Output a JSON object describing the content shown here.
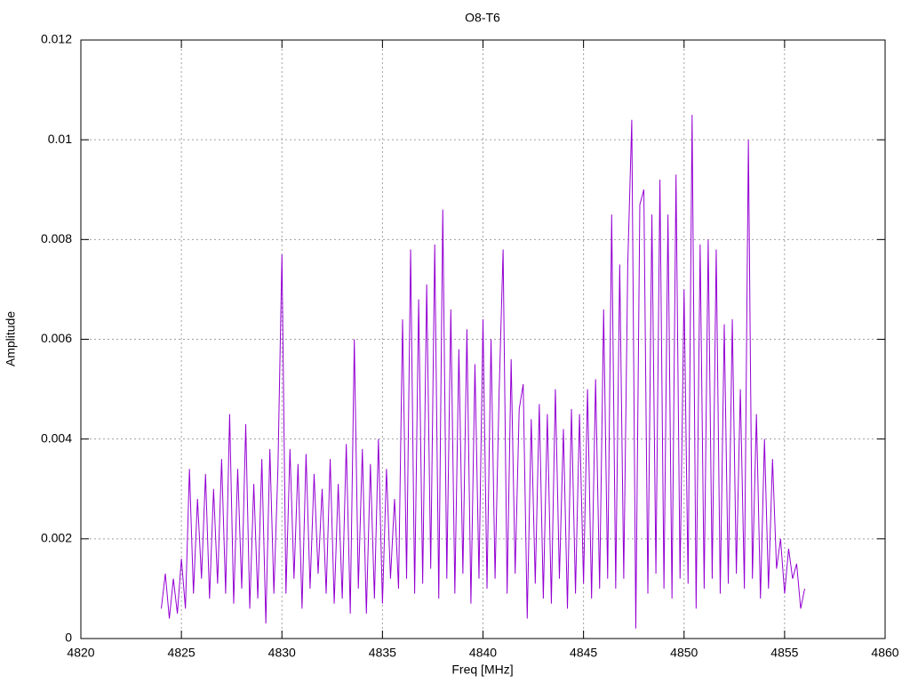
{
  "chart_data": {
    "type": "line",
    "title": "O8-T6",
    "xlabel": "Freq [MHz]",
    "ylabel": "Amplitude",
    "xlim": [
      4820,
      4860
    ],
    "xticks": [
      4820,
      4825,
      4830,
      4835,
      4840,
      4845,
      4850,
      4855,
      4860
    ],
    "ylim": [
      0,
      0.012
    ],
    "yticks": [
      0,
      0.002,
      0.004,
      0.006,
      0.008,
      0.01,
      0.012
    ],
    "grid": true,
    "series": [
      {
        "color": "#9400d3",
        "x": [
          4824.0,
          4824.2,
          4824.4,
          4824.6,
          4824.8,
          4825.0,
          4825.2,
          4825.4,
          4825.6,
          4825.8,
          4826.0,
          4826.2,
          4826.4,
          4826.6,
          4826.8,
          4827.0,
          4827.2,
          4827.4,
          4827.6,
          4827.8,
          4828.0,
          4828.2,
          4828.4,
          4828.6,
          4828.8,
          4829.0,
          4829.2,
          4829.4,
          4829.6,
          4829.8,
          4830.0,
          4830.2,
          4830.4,
          4830.6,
          4830.8,
          4831.0,
          4831.2,
          4831.4,
          4831.6,
          4831.8,
          4832.0,
          4832.2,
          4832.4,
          4832.6,
          4832.8,
          4833.0,
          4833.2,
          4833.4,
          4833.6,
          4833.8,
          4834.0,
          4834.2,
          4834.4,
          4834.6,
          4834.8,
          4835.0,
          4835.2,
          4835.4,
          4835.6,
          4835.8,
          4836.0,
          4836.2,
          4836.4,
          4836.6,
          4836.8,
          4837.0,
          4837.2,
          4837.4,
          4837.6,
          4837.8,
          4838.0,
          4838.2,
          4838.4,
          4838.6,
          4838.8,
          4839.0,
          4839.2,
          4839.4,
          4839.6,
          4839.8,
          4840.0,
          4840.2,
          4840.4,
          4840.6,
          4840.8,
          4841.0,
          4841.2,
          4841.4,
          4841.6,
          4841.8,
          4842.0,
          4842.2,
          4842.4,
          4842.6,
          4842.8,
          4843.0,
          4843.2,
          4843.4,
          4843.6,
          4843.8,
          4844.0,
          4844.2,
          4844.4,
          4844.6,
          4844.8,
          4845.0,
          4845.2,
          4845.4,
          4845.6,
          4845.8,
          4846.0,
          4846.2,
          4846.4,
          4846.6,
          4846.8,
          4847.0,
          4847.2,
          4847.4,
          4847.6,
          4847.8,
          4848.0,
          4848.2,
          4848.4,
          4848.6,
          4848.8,
          4849.0,
          4849.2,
          4849.4,
          4849.6,
          4849.8,
          4850.0,
          4850.2,
          4850.4,
          4850.6,
          4850.8,
          4851.0,
          4851.2,
          4851.4,
          4851.6,
          4851.8,
          4852.0,
          4852.2,
          4852.4,
          4852.6,
          4852.8,
          4853.0,
          4853.2,
          4853.4,
          4853.6,
          4853.8,
          4854.0,
          4854.2,
          4854.4,
          4854.6,
          4854.8,
          4855.0,
          4855.2,
          4855.4,
          4855.6,
          4855.8,
          4856.0
        ],
        "values": [
          0.0006,
          0.0013,
          0.0004,
          0.0012,
          0.0005,
          0.0016,
          0.0006,
          0.0034,
          0.0009,
          0.0028,
          0.0012,
          0.0033,
          0.0008,
          0.003,
          0.0011,
          0.0036,
          0.0009,
          0.0045,
          0.0007,
          0.0034,
          0.001,
          0.0043,
          0.0006,
          0.0031,
          0.0008,
          0.0036,
          0.0003,
          0.0038,
          0.0009,
          0.0034,
          0.0077,
          0.0009,
          0.0038,
          0.0012,
          0.0035,
          0.0006,
          0.0037,
          0.001,
          0.0033,
          0.0013,
          0.003,
          0.0009,
          0.0036,
          0.0007,
          0.0031,
          0.0008,
          0.0039,
          0.0005,
          0.006,
          0.001,
          0.0038,
          0.0005,
          0.0035,
          0.0008,
          0.004,
          0.0007,
          0.0034,
          0.0012,
          0.0028,
          0.001,
          0.0064,
          0.0012,
          0.0078,
          0.0009,
          0.0068,
          0.0011,
          0.0071,
          0.0014,
          0.0079,
          0.0008,
          0.0086,
          0.0012,
          0.0066,
          0.0009,
          0.0058,
          0.0013,
          0.0062,
          0.0007,
          0.0055,
          0.0012,
          0.0064,
          0.001,
          0.006,
          0.0012,
          0.0049,
          0.0078,
          0.0009,
          0.0056,
          0.0013,
          0.0046,
          0.0051,
          0.0004,
          0.0044,
          0.0011,
          0.0047,
          0.0008,
          0.0045,
          0.0007,
          0.005,
          0.0012,
          0.0042,
          0.0006,
          0.0046,
          0.0009,
          0.0045,
          0.0011,
          0.005,
          0.0008,
          0.0052,
          0.001,
          0.0066,
          0.0012,
          0.0085,
          0.001,
          0.0075,
          0.0012,
          0.0075,
          0.0104,
          0.0002,
          0.0087,
          0.009,
          0.0009,
          0.0085,
          0.0013,
          0.0092,
          0.001,
          0.0085,
          0.0008,
          0.0093,
          0.0012,
          0.007,
          0.0011,
          0.0105,
          0.0006,
          0.0079,
          0.001,
          0.008,
          0.0012,
          0.0078,
          0.0009,
          0.0063,
          0.0011,
          0.0064,
          0.0013,
          0.005,
          0.001,
          0.01,
          0.0012,
          0.0045,
          0.0008,
          0.004,
          0.001,
          0.0036,
          0.0014,
          0.002,
          0.0009,
          0.0018,
          0.0012,
          0.0015,
          0.0006,
          0.001
        ]
      }
    ]
  }
}
